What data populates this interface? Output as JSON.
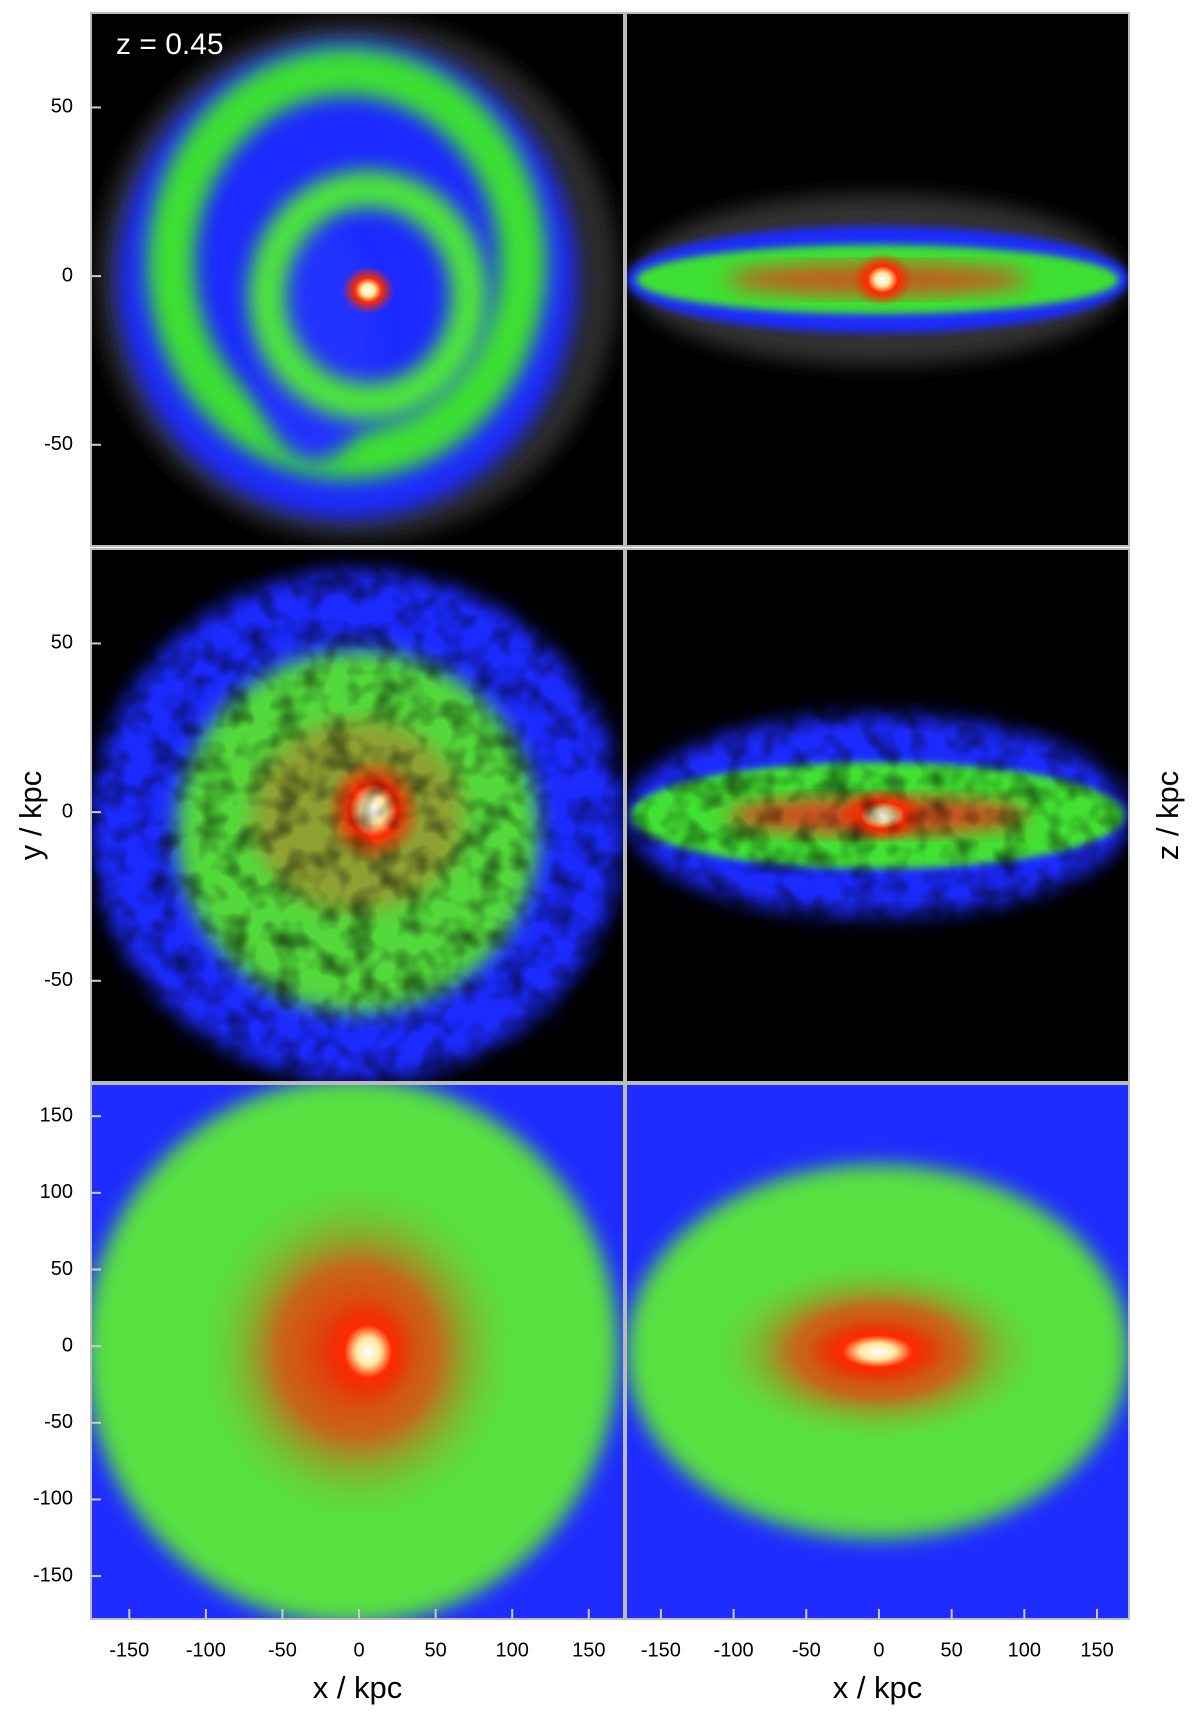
{
  "chart_data": [
    {
      "type": "image",
      "annotation": "z = 0.45",
      "ylim": [
        -80,
        78
      ],
      "yticks": [
        -50,
        0,
        50
      ]
    },
    {
      "type": "image"
    },
    {
      "type": "image",
      "ylabel": "y / kpc",
      "ylim": [
        -80,
        78
      ],
      "yticks": [
        -50,
        0,
        50
      ]
    },
    {
      "type": "image",
      "ylabel": "z / kpc"
    },
    {
      "type": "image",
      "xlabel": "x / kpc",
      "xlim": [
        -175,
        173
      ],
      "xticks": [
        -150,
        -100,
        -50,
        0,
        50,
        100,
        150
      ],
      "ylim": [
        -178,
        171
      ],
      "yticks": [
        -150,
        -100,
        -50,
        0,
        50,
        100,
        150
      ]
    },
    {
      "type": "image",
      "xlabel": "x / kpc",
      "xlim": [
        -174,
        172
      ],
      "xticks": [
        -150,
        -100,
        -50,
        0,
        50,
        100,
        150
      ]
    }
  ]
}
